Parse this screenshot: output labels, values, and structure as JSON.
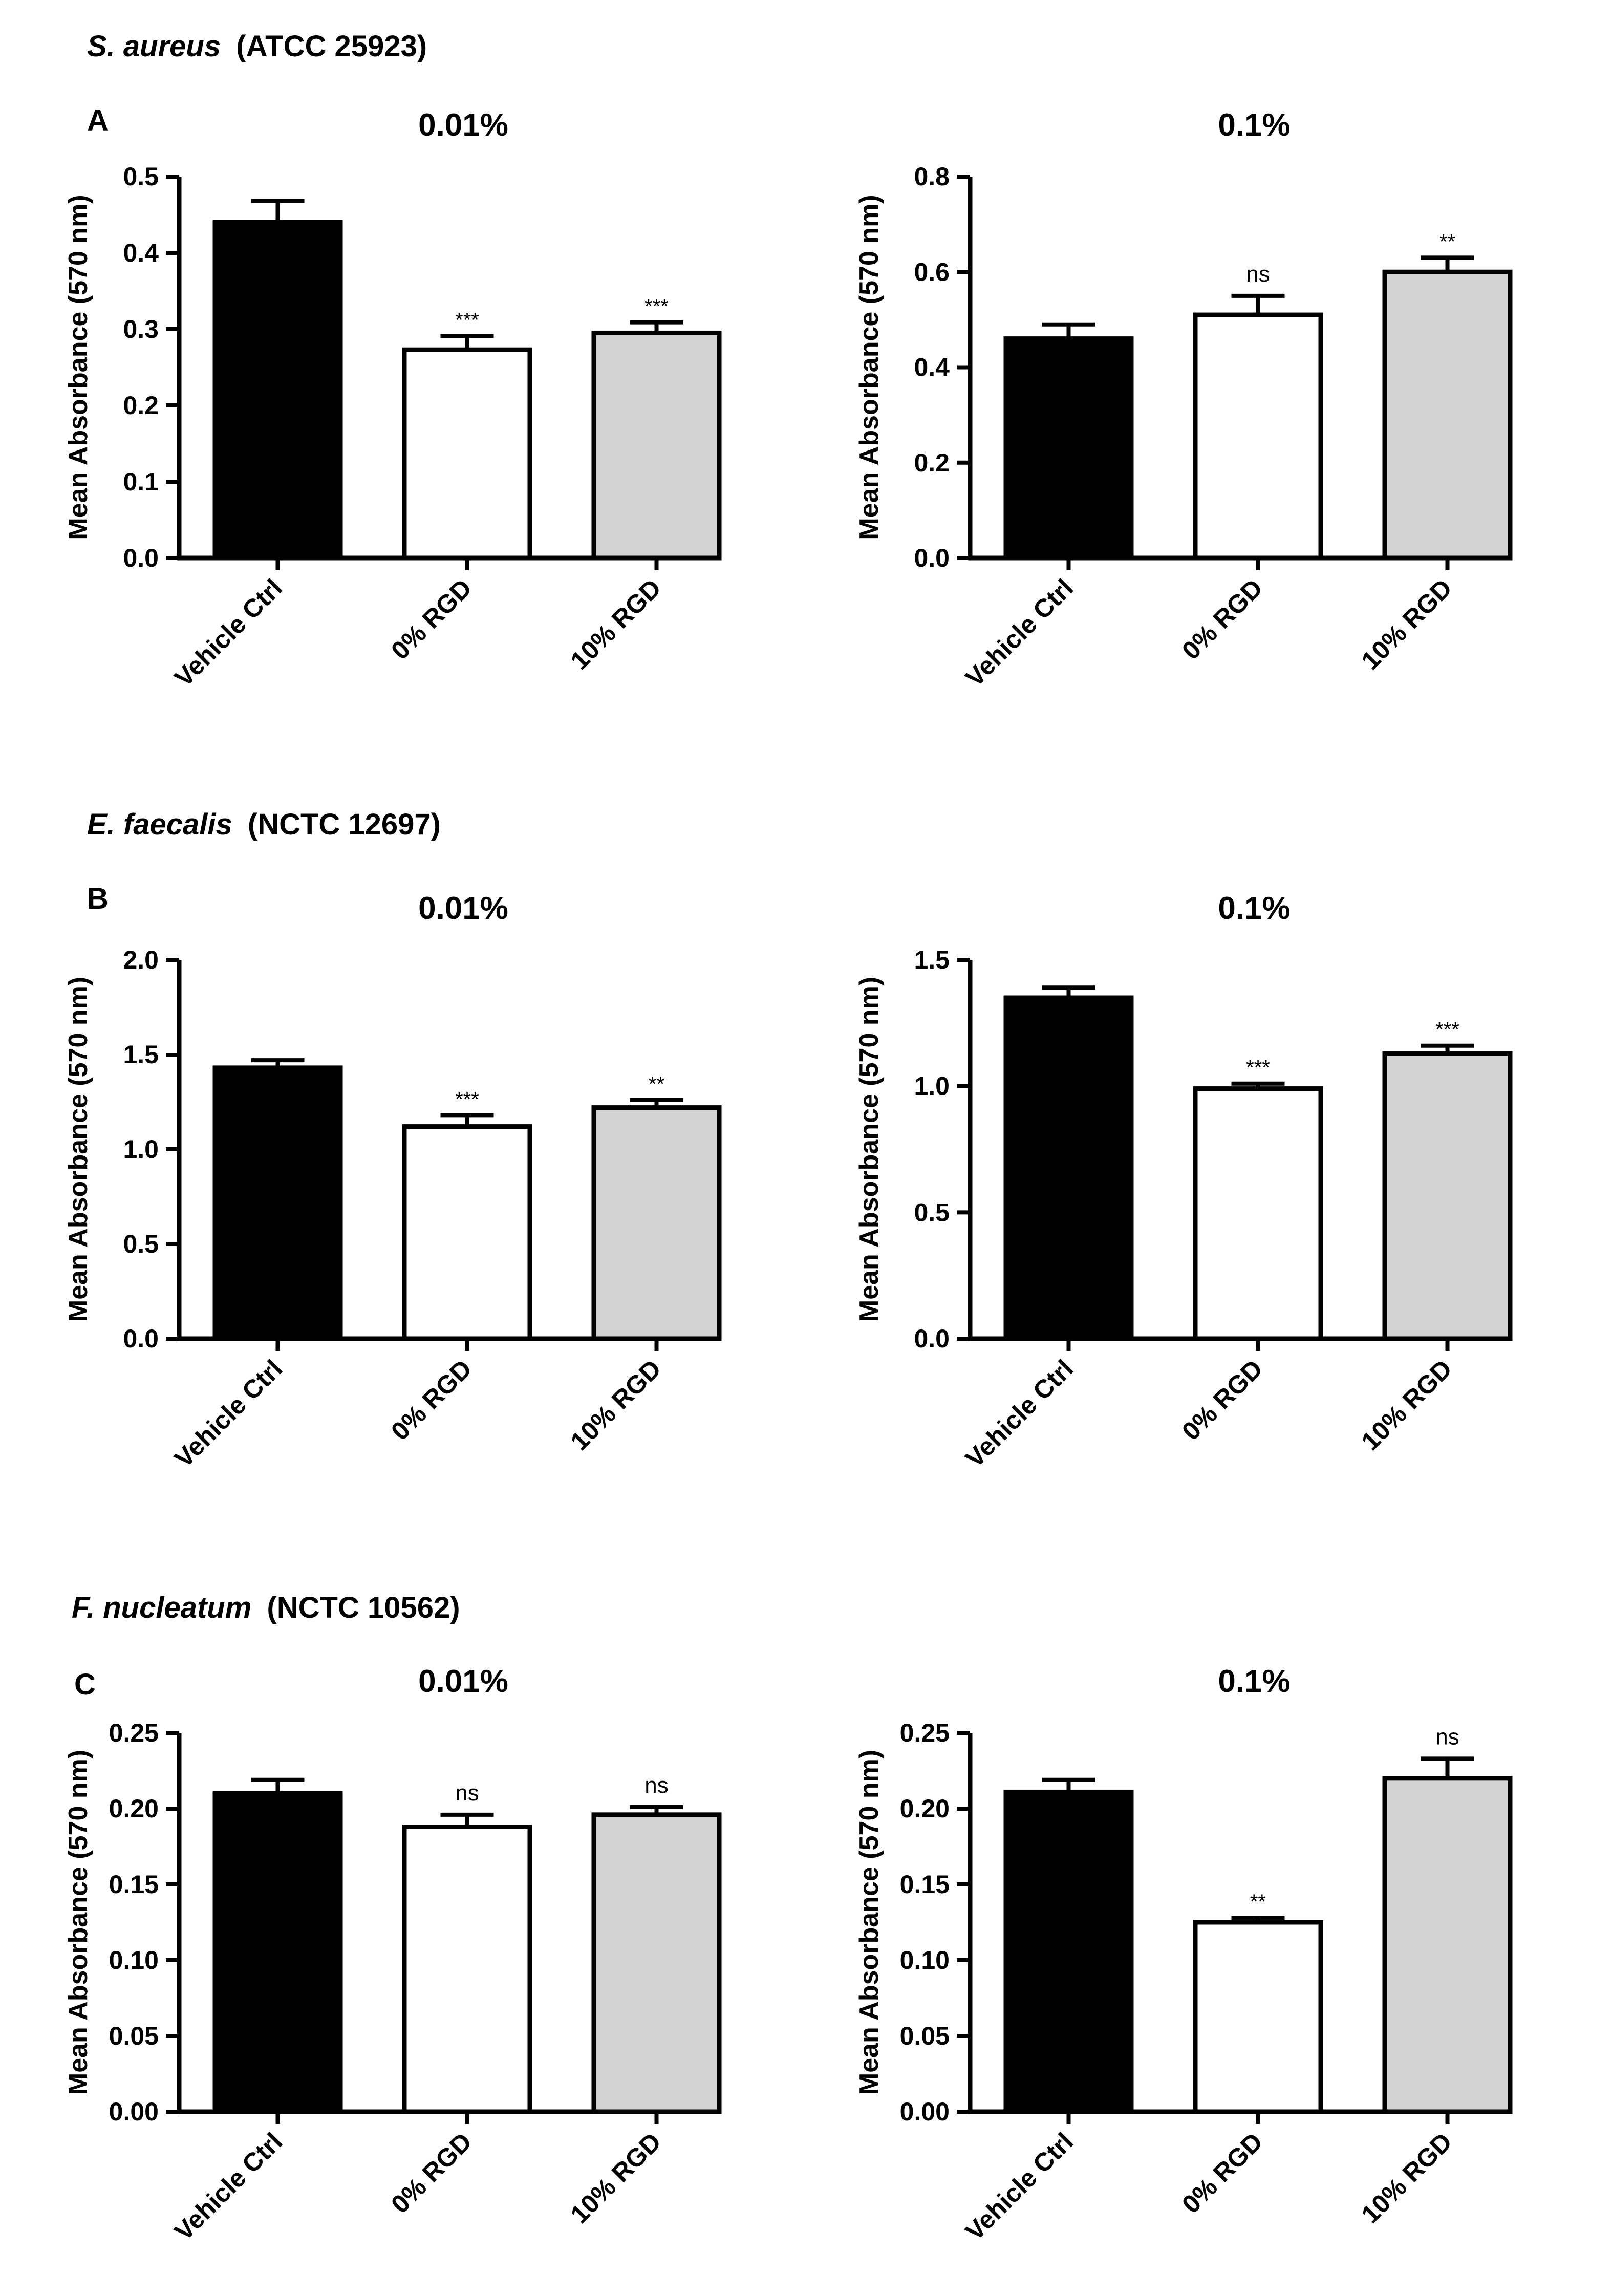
{
  "colors": {
    "vehicle": "#000000",
    "rgd0": "#ffffff",
    "rgd10": "#d3d3d3",
    "stroke": "#000000"
  },
  "sections": [
    {
      "species": "S. aureus",
      "strain": "(ATCC 25923)",
      "letter": "A"
    },
    {
      "species": "E. faecalis",
      "strain": "(NCTC 12697)",
      "letter": "B"
    },
    {
      "species": "F. nucleatum",
      "strain": "(NCTC 10562)",
      "letter": "C"
    }
  ],
  "chart_data": [
    {
      "type": "bar",
      "title": "0.01%",
      "ylabel": "Mean Absorbance (570 nm)",
      "categories": [
        "Vehicle Ctrl",
        "0% RGD",
        "10% RGD"
      ],
      "values": [
        0.44,
        0.273,
        0.295
      ],
      "errors": [
        0.028,
        0.018,
        0.014
      ],
      "significance": [
        "",
        "***",
        "***"
      ],
      "ylim": [
        0,
        0.5
      ],
      "yticks": [
        "0.0",
        "0.1",
        "0.2",
        "0.3",
        "0.4",
        "0.5"
      ]
    },
    {
      "type": "bar",
      "title": "0.1%",
      "ylabel": "Mean Absorbance (570 nm)",
      "categories": [
        "Vehicle Ctrl",
        "0% RGD",
        "10% RGD"
      ],
      "values": [
        0.46,
        0.51,
        0.6
      ],
      "errors": [
        0.03,
        0.04,
        0.03
      ],
      "significance": [
        "",
        "ns",
        "**"
      ],
      "ylim": [
        0,
        0.8
      ],
      "yticks": [
        "0.0",
        "0.2",
        "0.4",
        "0.6",
        "0.8"
      ]
    },
    {
      "type": "bar",
      "title": "0.01%",
      "ylabel": "Mean Absorbance (570 nm)",
      "categories": [
        "Vehicle Ctrl",
        "0% RGD",
        "10% RGD"
      ],
      "values": [
        1.43,
        1.12,
        1.22
      ],
      "errors": [
        0.04,
        0.06,
        0.04
      ],
      "significance": [
        "",
        "***",
        "**"
      ],
      "ylim": [
        0,
        2.0
      ],
      "yticks": [
        "0.0",
        "0.5",
        "1.0",
        "1.5",
        "2.0"
      ]
    },
    {
      "type": "bar",
      "title": "0.1%",
      "ylabel": "Mean Absorbance (570 nm)",
      "categories": [
        "Vehicle Ctrl",
        "0% RGD",
        "10% RGD"
      ],
      "values": [
        1.35,
        0.99,
        1.13
      ],
      "errors": [
        0.04,
        0.02,
        0.03
      ],
      "significance": [
        "",
        "***",
        "***"
      ],
      "ylim": [
        0,
        1.5
      ],
      "yticks": [
        "0.0",
        "0.5",
        "1.0",
        "1.5"
      ]
    },
    {
      "type": "bar",
      "title": "0.01%",
      "ylabel": "Mean Absorbance (570 nm)",
      "categories": [
        "Vehicle Ctrl",
        "0% RGD",
        "10% RGD"
      ],
      "values": [
        0.21,
        0.188,
        0.196
      ],
      "errors": [
        0.009,
        0.008,
        0.005
      ],
      "significance": [
        "",
        "ns",
        "ns"
      ],
      "ylim": [
        0,
        0.25
      ],
      "yticks": [
        "0.00",
        "0.05",
        "0.10",
        "0.15",
        "0.20",
        "0.25"
      ]
    },
    {
      "type": "bar",
      "title": "0.1%",
      "ylabel": "Mean Absorbance (570 nm)",
      "categories": [
        "Vehicle Ctrl",
        "0% RGD",
        "10% RGD"
      ],
      "values": [
        0.211,
        0.125,
        0.22
      ],
      "errors": [
        0.008,
        0.003,
        0.013
      ],
      "significance": [
        "",
        "**",
        "ns"
      ],
      "ylim": [
        0,
        0.25
      ],
      "yticks": [
        "0.00",
        "0.05",
        "0.10",
        "0.15",
        "0.20",
        "0.25"
      ]
    }
  ]
}
